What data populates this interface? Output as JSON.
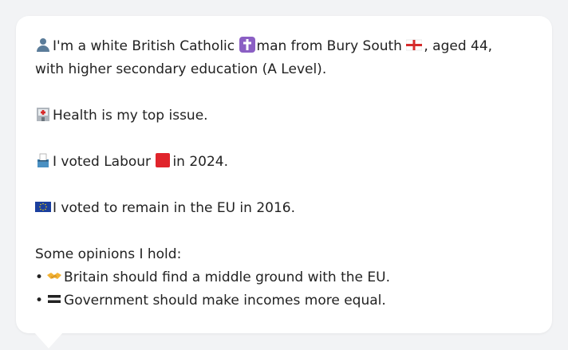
{
  "profile": {
    "line1_pre": "I'm a white British Catholic",
    "line1_mid": "man from Bury South",
    "line1_post": ", aged 44, with higher secondary education (A Level).",
    "health": "Health is my top issue.",
    "vote_pre": "I voted Labour",
    "vote_post": "in 2024.",
    "eu": "I voted to remain in the EU in 2016."
  },
  "opinions": {
    "heading": "Some opinions I hold:",
    "bullet": "•",
    "items": [
      "Britain should find a middle ground with the EU.",
      "Government should make incomes more equal."
    ]
  },
  "icons": {
    "person": "person-icon",
    "cross": "latin-cross-icon",
    "flag": "england-flag-icon",
    "hospital": "hospital-icon",
    "ballot": "ballot-box-icon",
    "labour": "red-square-icon",
    "eu": "eu-flag-icon",
    "handshake": "handshake-icon",
    "equals": "equals-icon"
  }
}
